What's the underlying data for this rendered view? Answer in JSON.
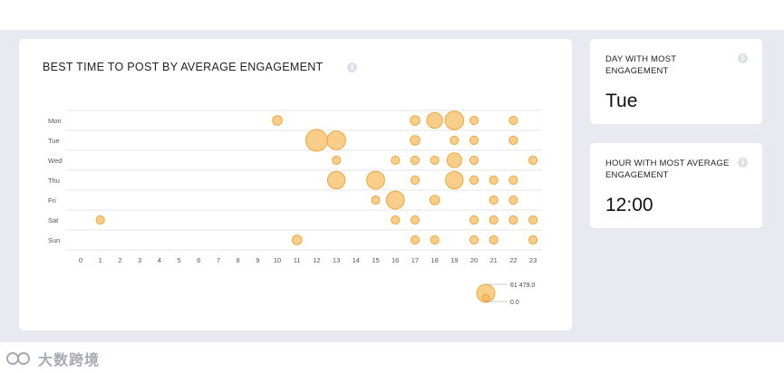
{
  "main": {
    "title": "BEST TIME TO POST BY AVERAGE ENGAGEMENT",
    "info_icon": "info-icon"
  },
  "chart_data": {
    "type": "scatter",
    "title": "BEST TIME TO POST BY AVERAGE ENGAGEMENT",
    "xlabel": "",
    "ylabel": "",
    "x_ticks": [
      "0",
      "1",
      "2",
      "3",
      "4",
      "5",
      "6",
      "7",
      "8",
      "9",
      "10",
      "11",
      "12",
      "13",
      "14",
      "15",
      "16",
      "17",
      "18",
      "19",
      "20",
      "21",
      "22",
      "23"
    ],
    "y_categories": [
      "Mon",
      "Tue",
      "Wed",
      "Thu",
      "Fri",
      "Sat",
      "Sun"
    ],
    "points": [
      {
        "day": "Mon",
        "hour": 10,
        "value": 12000
      },
      {
        "day": "Mon",
        "hour": 17,
        "value": 12000
      },
      {
        "day": "Mon",
        "hour": 18,
        "value": 32000
      },
      {
        "day": "Mon",
        "hour": 19,
        "value": 45000
      },
      {
        "day": "Mon",
        "hour": 20,
        "value": 9000
      },
      {
        "day": "Mon",
        "hour": 22,
        "value": 9000
      },
      {
        "day": "Tue",
        "hour": 12,
        "value": 61479
      },
      {
        "day": "Tue",
        "hour": 13,
        "value": 45000
      },
      {
        "day": "Tue",
        "hour": 17,
        "value": 12000
      },
      {
        "day": "Tue",
        "hour": 19,
        "value": 9000
      },
      {
        "day": "Tue",
        "hour": 20,
        "value": 9000
      },
      {
        "day": "Tue",
        "hour": 22,
        "value": 9000
      },
      {
        "day": "Wed",
        "hour": 13,
        "value": 9000
      },
      {
        "day": "Wed",
        "hour": 16,
        "value": 9000
      },
      {
        "day": "Wed",
        "hour": 17,
        "value": 9000
      },
      {
        "day": "Wed",
        "hour": 18,
        "value": 9000
      },
      {
        "day": "Wed",
        "hour": 19,
        "value": 28000
      },
      {
        "day": "Wed",
        "hour": 20,
        "value": 9000
      },
      {
        "day": "Wed",
        "hour": 23,
        "value": 9000
      },
      {
        "day": "Thu",
        "hour": 13,
        "value": 40000
      },
      {
        "day": "Thu",
        "hour": 15,
        "value": 42000
      },
      {
        "day": "Thu",
        "hour": 17,
        "value": 9000
      },
      {
        "day": "Thu",
        "hour": 19,
        "value": 40000
      },
      {
        "day": "Thu",
        "hour": 20,
        "value": 9000
      },
      {
        "day": "Thu",
        "hour": 21,
        "value": 9000
      },
      {
        "day": "Thu",
        "hour": 22,
        "value": 9000
      },
      {
        "day": "Fri",
        "hour": 15,
        "value": 9000
      },
      {
        "day": "Fri",
        "hour": 16,
        "value": 42000
      },
      {
        "day": "Fri",
        "hour": 18,
        "value": 12000
      },
      {
        "day": "Fri",
        "hour": 21,
        "value": 9000
      },
      {
        "day": "Fri",
        "hour": 22,
        "value": 9000
      },
      {
        "day": "Sat",
        "hour": 1,
        "value": 9000
      },
      {
        "day": "Sat",
        "hour": 16,
        "value": 9000
      },
      {
        "day": "Sat",
        "hour": 17,
        "value": 9000
      },
      {
        "day": "Sat",
        "hour": 20,
        "value": 9000
      },
      {
        "day": "Sat",
        "hour": 21,
        "value": 9000
      },
      {
        "day": "Sat",
        "hour": 22,
        "value": 9000
      },
      {
        "day": "Sat",
        "hour": 23,
        "value": 9000
      },
      {
        "day": "Sun",
        "hour": 11,
        "value": 12000
      },
      {
        "day": "Sun",
        "hour": 17,
        "value": 9000
      },
      {
        "day": "Sun",
        "hour": 18,
        "value": 9000
      },
      {
        "day": "Sun",
        "hour": 20,
        "value": 9000
      },
      {
        "day": "Sun",
        "hour": 21,
        "value": 9000
      },
      {
        "day": "Sun",
        "hour": 23,
        "value": 9000
      }
    ],
    "legend": {
      "max_label": "61 479.0",
      "min_label": "0.0",
      "max_value": 61479,
      "min_value": 0
    },
    "bubble_color": "#f7be63",
    "bubble_stroke": "#f0a73d",
    "grid": true
  },
  "day_card": {
    "label": "DAY WITH MOST ENGAGEMENT",
    "value": "Tue"
  },
  "hour_card": {
    "label": "HOUR WITH MOST AVERAGE ENGAGEMENT",
    "value": "12:00"
  },
  "watermark": {
    "text": "大数跨境"
  }
}
